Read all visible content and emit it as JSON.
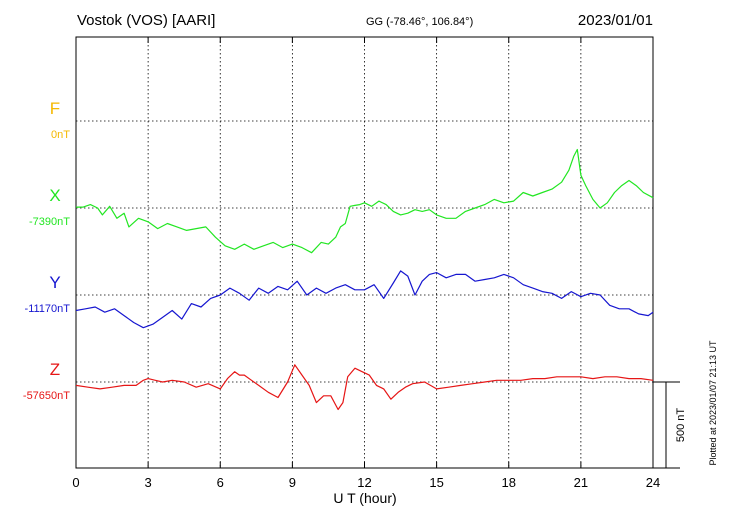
{
  "header": {
    "station": "Vostok (VOS)  [AARI]",
    "coords": "GG (-78.46°, 106.84°)",
    "date": "2023/01/01"
  },
  "footer": {
    "plotted": "Plotted at 2023/01/07 21:13 UT"
  },
  "scale": {
    "label": "500 nT",
    "value_nT": 500
  },
  "chart_data": {
    "type": "line",
    "xlabel": "U T (hour)",
    "xlim": [
      0,
      24
    ],
    "xticks": [
      0,
      3,
      6,
      9,
      12,
      15,
      18,
      21,
      24
    ],
    "xtick_labels": [
      "0",
      "3",
      "6",
      "9",
      "12",
      "15",
      "18",
      "21",
      "24"
    ],
    "grid": true,
    "series": [
      {
        "name": "F",
        "baseline_label": "0nT",
        "color": "#f5b800",
        "x": [],
        "y": []
      },
      {
        "name": "X",
        "baseline_label": "-7390nT",
        "color": "#22e622",
        "x": [
          0,
          0.3,
          0.6,
          0.9,
          1.1,
          1.4,
          1.7,
          2.0,
          2.2,
          2.6,
          3.0,
          3.4,
          3.8,
          4.2,
          4.6,
          5.0,
          5.4,
          5.8,
          6.2,
          6.6,
          7.0,
          7.4,
          7.8,
          8.2,
          8.6,
          9.0,
          9.4,
          9.8,
          10.2,
          10.5,
          10.8,
          11.0,
          11.2,
          11.4,
          11.6,
          11.8,
          12.0,
          12.3,
          12.6,
          12.9,
          13.2,
          13.5,
          13.8,
          14.1,
          14.4,
          14.7,
          15.0,
          15.4,
          15.8,
          16.2,
          16.6,
          17.0,
          17.4,
          17.8,
          18.2,
          18.6,
          19.0,
          19.4,
          19.8,
          20.2,
          20.5,
          20.7,
          20.85,
          21.0,
          21.2,
          21.5,
          21.8,
          22.1,
          22.4,
          22.7,
          23.0,
          23.3,
          23.6,
          24.0
        ],
        "y": [
          5,
          5,
          20,
          0,
          -40,
          10,
          -60,
          -30,
          -110,
          -60,
          -80,
          -120,
          -90,
          -110,
          -130,
          -120,
          -110,
          -170,
          -220,
          -240,
          -210,
          -240,
          -220,
          -200,
          -230,
          -210,
          -230,
          -260,
          -200,
          -210,
          -170,
          -110,
          -90,
          10,
          15,
          20,
          30,
          10,
          40,
          20,
          -20,
          -40,
          -30,
          -10,
          -20,
          -10,
          -40,
          -60,
          -60,
          -20,
          0,
          20,
          50,
          30,
          40,
          90,
          70,
          90,
          110,
          150,
          220,
          300,
          340,
          190,
          130,
          50,
          0,
          30,
          90,
          130,
          160,
          130,
          90,
          60
        ]
      },
      {
        "name": "Y",
        "baseline_label": "-11170nT",
        "color": "#1616d0",
        "x": [
          0,
          0.4,
          0.8,
          1.2,
          1.6,
          2.0,
          2.4,
          2.8,
          3.2,
          3.6,
          4.0,
          4.4,
          4.8,
          5.2,
          5.6,
          6.0,
          6.4,
          6.8,
          7.2,
          7.6,
          8.0,
          8.4,
          8.8,
          9.2,
          9.6,
          10.0,
          10.4,
          10.8,
          11.2,
          11.6,
          12.0,
          12.4,
          12.8,
          13.2,
          13.5,
          13.8,
          14.1,
          14.4,
          14.7,
          15.0,
          15.4,
          15.8,
          16.2,
          16.6,
          17.0,
          17.4,
          17.8,
          18.2,
          18.6,
          19.0,
          19.4,
          19.8,
          20.2,
          20.6,
          21.0,
          21.4,
          21.8,
          22.2,
          22.6,
          23.0,
          23.4,
          23.8,
          24.0
        ],
        "y": [
          -90,
          -80,
          -70,
          -100,
          -80,
          -120,
          -160,
          -190,
          -170,
          -130,
          -90,
          -140,
          -50,
          -70,
          -20,
          0,
          40,
          10,
          -30,
          40,
          10,
          50,
          30,
          80,
          0,
          40,
          10,
          40,
          60,
          30,
          30,
          60,
          -20,
          70,
          140,
          110,
          0,
          80,
          120,
          130,
          100,
          120,
          120,
          80,
          90,
          100,
          120,
          100,
          60,
          40,
          20,
          10,
          -20,
          20,
          -10,
          10,
          0,
          -60,
          -80,
          -80,
          -110,
          -120,
          -100
        ]
      },
      {
        "name": "Z",
        "baseline_label": "-57650nT",
        "color": "#e61616",
        "x": [
          0,
          0.5,
          1.0,
          1.5,
          2.0,
          2.5,
          2.8,
          3.0,
          3.3,
          3.6,
          4.0,
          4.5,
          5.0,
          5.5,
          6.0,
          6.3,
          6.6,
          6.8,
          7.0,
          7.3,
          7.6,
          8.0,
          8.4,
          8.8,
          9.1,
          9.4,
          9.7,
          10.0,
          10.3,
          10.6,
          10.9,
          11.1,
          11.3,
          11.6,
          11.9,
          12.2,
          12.5,
          12.8,
          13.1,
          13.4,
          13.7,
          14.0,
          14.5,
          15.0,
          15.5,
          16.0,
          16.5,
          17.0,
          17.5,
          18.0,
          18.5,
          19.0,
          19.5,
          20.0,
          20.5,
          21.0,
          21.5,
          22.0,
          22.5,
          23.0,
          23.5,
          24.0
        ],
        "y": [
          -20,
          -30,
          -40,
          -30,
          -20,
          -20,
          10,
          20,
          10,
          0,
          10,
          0,
          -30,
          -10,
          -40,
          20,
          60,
          40,
          40,
          10,
          -20,
          -60,
          -90,
          0,
          100,
          40,
          -20,
          -120,
          -80,
          -80,
          -160,
          -120,
          30,
          80,
          60,
          40,
          -20,
          -40,
          -100,
          -60,
          -30,
          -10,
          0,
          -40,
          -30,
          -20,
          -10,
          0,
          10,
          10,
          10,
          20,
          20,
          30,
          30,
          30,
          20,
          30,
          30,
          20,
          20,
          10
        ]
      }
    ]
  }
}
